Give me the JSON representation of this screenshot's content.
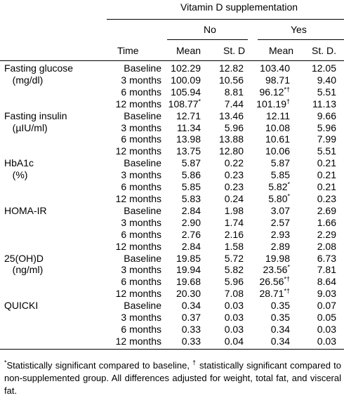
{
  "header": {
    "group_title": "Vitamin D supplementation",
    "no_label": "No",
    "yes_label": "Yes",
    "time_label": "Time",
    "col_labels": [
      "Mean",
      "St. D",
      "Mean",
      "St. D."
    ]
  },
  "groups": [
    {
      "name": [
        "Fasting glucose",
        "(mg/dl)"
      ],
      "rows": [
        {
          "time": "Baseline",
          "vals": [
            "102.29",
            "12.82",
            "103.40",
            "12.05"
          ]
        },
        {
          "time": "3 months",
          "vals": [
            "100.09",
            "10.56",
            "98.71",
            "9.40"
          ]
        },
        {
          "time": "6 months",
          "vals": [
            "105.94",
            "8.81",
            "96.12*†",
            "5.51"
          ]
        },
        {
          "time": "12 months",
          "vals": [
            "108.77*",
            "7.44",
            "101.19†",
            "11.13"
          ]
        }
      ]
    },
    {
      "name": [
        "Fasting insulin",
        "(µIU/ml)"
      ],
      "rows": [
        {
          "time": "Baseline",
          "vals": [
            "12.71",
            "13.46",
            "12.11",
            "9.66"
          ]
        },
        {
          "time": "3 months",
          "vals": [
            "11.34",
            "5.96",
            "10.08",
            "5.96"
          ]
        },
        {
          "time": "6 months",
          "vals": [
            "13.98",
            "13.88",
            "10.61",
            "7.99"
          ]
        },
        {
          "time": "12 months",
          "vals": [
            "13.75",
            "12.80",
            "10.06",
            "5.51"
          ]
        }
      ]
    },
    {
      "name": [
        "HbA1c",
        "(%)"
      ],
      "rows": [
        {
          "time": "Baseline",
          "vals": [
            "5.87",
            "0.22",
            "5.87",
            "0.21"
          ]
        },
        {
          "time": "3 months",
          "vals": [
            "5.86",
            "0.23",
            "5.85",
            "0.21"
          ]
        },
        {
          "time": "6 months",
          "vals": [
            "5.85",
            "0.23",
            "5.82*",
            "0.21"
          ]
        },
        {
          "time": "12 months",
          "vals": [
            "5.83",
            "0.24",
            "5.80*",
            "0.23"
          ]
        }
      ]
    },
    {
      "name": [
        "HOMA-IR",
        ""
      ],
      "rows": [
        {
          "time": "Baseline",
          "vals": [
            "2.84",
            "1.98",
            "3.07",
            "2.69"
          ]
        },
        {
          "time": "3 months",
          "vals": [
            "2.90",
            "1.74",
            "2.57",
            "1.66"
          ]
        },
        {
          "time": "6 months",
          "vals": [
            "2.76",
            "2.16",
            "2.93",
            "2.29"
          ]
        },
        {
          "time": "12 months",
          "vals": [
            "2.84",
            "1.58",
            "2.89",
            "2.08"
          ]
        }
      ]
    },
    {
      "name": [
        "25(OH)D",
        "(ng/ml)"
      ],
      "rows": [
        {
          "time": "Baseline",
          "vals": [
            "19.85",
            "5.72",
            "19.98",
            "6.73"
          ]
        },
        {
          "time": "3 months",
          "vals": [
            "19.94",
            "5.82",
            "23.56*",
            "7.81"
          ]
        },
        {
          "time": "6 months",
          "vals": [
            "19.68",
            "5.96",
            "26.56*†",
            "8.64"
          ]
        },
        {
          "time": "12 months",
          "vals": [
            "20.30",
            "7.08",
            "28.71*†",
            "9.03"
          ]
        }
      ]
    },
    {
      "name": [
        "QUICKI",
        ""
      ],
      "rows": [
        {
          "time": "Baseline",
          "vals": [
            "0.34",
            "0.03",
            "0.35",
            "0.07"
          ]
        },
        {
          "time": "3 months",
          "vals": [
            "0.37",
            "0.03",
            "0.35",
            "0.05"
          ]
        },
        {
          "time": "6 months",
          "vals": [
            "0.33",
            "0.03",
            "0.34",
            "0.03"
          ]
        },
        {
          "time": "12 months",
          "vals": [
            "0.33",
            "0.04",
            "0.34",
            "0.03"
          ]
        }
      ]
    }
  ],
  "footnote": "*Statistically significant compared to baseline, † statistically significant compared to non-supplemented group. All differences adjusted for weight, total fat, and visceral fat."
}
